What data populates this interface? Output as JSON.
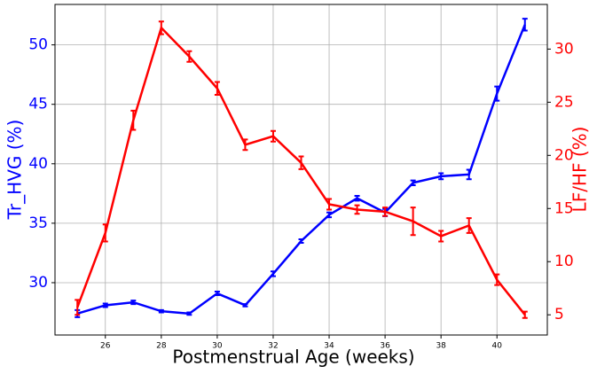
{
  "chart_data": {
    "type": "line",
    "x_label": "Postmenstrual Age (weeks)",
    "y_label": "Tr_HVG (%)",
    "y2_label": "LF/HF (%)",
    "x": [
      25,
      26,
      27,
      28,
      29,
      30,
      31,
      32,
      33,
      34,
      35,
      36,
      37,
      38,
      39,
      40,
      41
    ],
    "series": [
      {
        "name": "Tr_HVG (%)",
        "color": "#0000ff",
        "axis": "y",
        "values": [
          27.4,
          28.1,
          28.35,
          27.6,
          27.4,
          29.1,
          28.1,
          30.75,
          33.5,
          35.7,
          37.1,
          35.9,
          38.4,
          38.95,
          39.1,
          45.9,
          51.7
        ],
        "errors": [
          0.3,
          0.15,
          0.15,
          0.1,
          0.1,
          0.15,
          0.1,
          0.2,
          0.15,
          0.2,
          0.2,
          0.3,
          0.2,
          0.25,
          0.4,
          0.6,
          0.5
        ]
      },
      {
        "name": "LF/HF (%)",
        "color": "#ff0000",
        "axis": "y2",
        "values": [
          5.7,
          12.7,
          23.3,
          32.0,
          29.3,
          26.3,
          21.0,
          21.8,
          19.3,
          15.4,
          14.9,
          14.7,
          13.8,
          12.4,
          13.4,
          8.3,
          5.0
        ],
        "errors": [
          0.7,
          0.8,
          0.9,
          0.6,
          0.5,
          0.6,
          0.5,
          0.5,
          0.6,
          0.5,
          0.4,
          0.4,
          1.3,
          0.5,
          0.7,
          0.5,
          0.3
        ]
      }
    ],
    "xlim": [
      24.2,
      41.8
    ],
    "xticks": [
      26,
      28,
      30,
      32,
      34,
      36,
      38,
      40
    ],
    "ylim": [
      25.6,
      53.4
    ],
    "yticks": [
      30,
      35,
      40,
      45,
      50
    ],
    "y2lim": [
      3.1,
      34.2
    ],
    "y2ticks": [
      5,
      10,
      15,
      20,
      25,
      30
    ],
    "grid": true
  }
}
